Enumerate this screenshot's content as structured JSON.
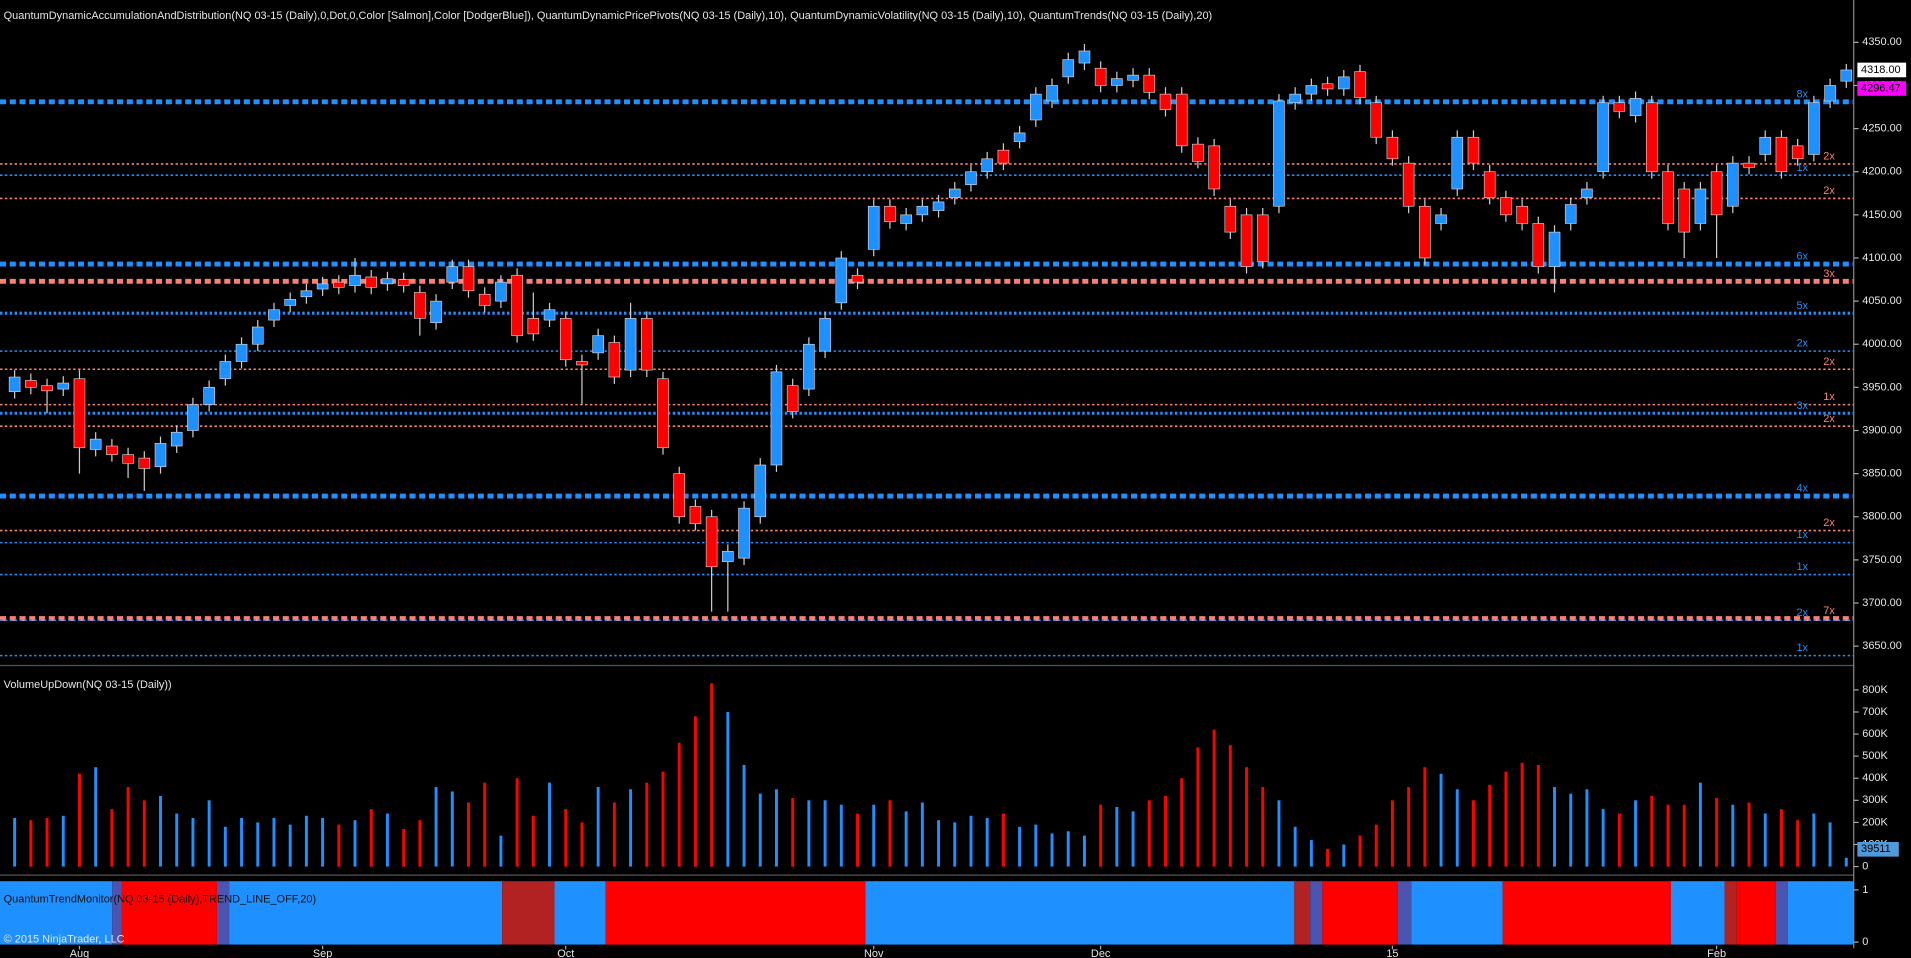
{
  "chart_data": [
    {
      "type": "candlestick",
      "title": "QuantumDynamicAccumulationAndDistribution(NQ 03-15 (Daily),0,Dot,0,Color [Salmon],Color [DodgerBlue]), QuantumDynamicPricePivots(NQ 03-15 (Daily),10), QuantumDynamicVolatility(NQ 03-15 (Daily),10), QuantumTrends(NQ 03-15 (Daily),20)",
      "up_color": "#1e90ff",
      "down_color": "#ff0000",
      "categories": [
        null,
        null,
        null,
        null,
        "Aug",
        null,
        null,
        null,
        null,
        null,
        null,
        null,
        null,
        null,
        null,
        null,
        null,
        null,
        null,
        "Sep",
        null,
        null,
        null,
        null,
        null,
        null,
        null,
        null,
        null,
        null,
        null,
        null,
        null,
        null,
        "Oct",
        null,
        null,
        null,
        null,
        null,
        null,
        null,
        null,
        null,
        null,
        null,
        null,
        null,
        null,
        null,
        null,
        null,
        null,
        "Nov",
        null,
        null,
        null,
        null,
        null,
        null,
        null,
        null,
        null,
        null,
        null,
        null,
        null,
        "Dec",
        null,
        null,
        null,
        null,
        null,
        null,
        null,
        null,
        null,
        null,
        null,
        null,
        null,
        null,
        null,
        null,
        null,
        "15",
        null,
        null,
        null,
        null,
        null,
        null,
        null,
        null,
        null,
        null,
        null,
        null,
        null,
        null,
        null,
        null,
        null,
        null,
        null,
        "Feb",
        null,
        null,
        null,
        null,
        null,
        null,
        null,
        null
      ],
      "open": [
        3945,
        3958,
        3952,
        3948,
        3960,
        3878,
        3882,
        3872,
        3868,
        3858,
        3882,
        3900,
        3930,
        3960,
        3980,
        4000,
        4028,
        4045,
        4055,
        4064,
        4072,
        4068,
        4078,
        4070,
        4075,
        4060,
        4025,
        4072,
        4090,
        4058,
        4050,
        4080,
        4030,
        4028,
        4030,
        3980,
        3990,
        4002,
        3970,
        4030,
        3960,
        3850,
        3812,
        3800,
        3748,
        3752,
        3800,
        3860,
        3952,
        3948,
        3992,
        4048,
        4080,
        4110,
        4160,
        4140,
        4150,
        4155,
        4170,
        4185,
        4200,
        4225,
        4235,
        4260,
        4282,
        4310,
        4326,
        4320,
        4300,
        4306,
        4312,
        4290,
        4290,
        4232,
        4230,
        4160,
        4150,
        4150,
        4160,
        4280,
        4290,
        4302,
        4296,
        4316,
        4280,
        4240,
        4210,
        4160,
        4140,
        4180,
        4240,
        4200,
        4170,
        4160,
        4140,
        4090,
        4140,
        4170,
        4200,
        4280,
        4265,
        4280,
        4200,
        4180,
        4140,
        4200,
        4160,
        4210,
        4220,
        4240,
        4230,
        4220,
        4282,
        4305
      ],
      "high": [
        3970,
        3966,
        3960,
        3963,
        3970,
        3898,
        3890,
        3880,
        3876,
        3893,
        3906,
        3938,
        3958,
        3988,
        4008,
        4028,
        4048,
        4060,
        4070,
        4078,
        4080,
        4100,
        4086,
        4084,
        4083,
        4068,
        4058,
        4098,
        4098,
        4066,
        4080,
        4088,
        4060,
        4048,
        4038,
        3988,
        4018,
        4010,
        4048,
        4038,
        3968,
        3858,
        3820,
        3808,
        3768,
        3818,
        3868,
        3976,
        3960,
        4008,
        4038,
        4108,
        4088,
        4168,
        4168,
        4158,
        4168,
        4173,
        4188,
        4208,
        4223,
        4233,
        4253,
        4298,
        4308,
        4338,
        4348,
        4328,
        4316,
        4320,
        4320,
        4298,
        4298,
        4240,
        4238,
        4168,
        4158,
        4158,
        4290,
        4298,
        4308,
        4310,
        4318,
        4324,
        4288,
        4248,
        4218,
        4168,
        4158,
        4248,
        4248,
        4208,
        4178,
        4168,
        4148,
        4138,
        4170,
        4188,
        4288,
        4288,
        4293,
        4288,
        4208,
        4188,
        4188,
        4208,
        4218,
        4218,
        4248,
        4248,
        4238,
        4288,
        4308,
        4325
      ],
      "low": [
        3937,
        3942,
        3920,
        3940,
        3850,
        3870,
        3864,
        3845,
        3830,
        3850,
        3874,
        3892,
        3922,
        3952,
        3972,
        3992,
        4020,
        4037,
        4047,
        4056,
        4058,
        4060,
        4058,
        4062,
        4060,
        4010,
        4017,
        4064,
        4054,
        4037,
        4042,
        4002,
        4004,
        4020,
        3974,
        3930,
        3982,
        3954,
        3962,
        3962,
        3872,
        3792,
        3784,
        3690,
        3690,
        3744,
        3792,
        3852,
        3914,
        3940,
        3984,
        4040,
        4064,
        4102,
        4134,
        4132,
        4142,
        4147,
        4162,
        4177,
        4192,
        4202,
        4227,
        4252,
        4274,
        4302,
        4318,
        4292,
        4292,
        4298,
        4284,
        4264,
        4222,
        4204,
        4172,
        4122,
        4082,
        4088,
        4152,
        4272,
        4282,
        4288,
        4288,
        4278,
        4232,
        4207,
        4152,
        4092,
        4132,
        4172,
        4202,
        4162,
        4142,
        4132,
        4082,
        4060,
        4132,
        4162,
        4192,
        4262,
        4257,
        4192,
        4132,
        4100,
        4132,
        4100,
        4152,
        4197,
        4212,
        4192,
        4207,
        4212,
        4274,
        4297
      ],
      "close": [
        3962,
        3950,
        3946,
        3955,
        3880,
        3890,
        3872,
        3862,
        3856,
        3885,
        3898,
        3930,
        3950,
        3980,
        4000,
        4020,
        4040,
        4052,
        4062,
        4070,
        4066,
        4080,
        4066,
        4076,
        4068,
        4030,
        4050,
        4090,
        4062,
        4045,
        4072,
        4010,
        4012,
        4040,
        3982,
        3976,
        4010,
        3962,
        4030,
        3970,
        3880,
        3800,
        3792,
        3742,
        3760,
        3810,
        3860,
        3968,
        3922,
        4000,
        4030,
        4100,
        4072,
        4160,
        4142,
        4150,
        4160,
        4165,
        4180,
        4200,
        4215,
        4210,
        4245,
        4290,
        4300,
        4330,
        4340,
        4300,
        4308,
        4312,
        4292,
        4272,
        4230,
        4212,
        4180,
        4130,
        4090,
        4096,
        4282,
        4290,
        4300,
        4296,
        4310,
        4286,
        4240,
        4215,
        4160,
        4100,
        4150,
        4240,
        4210,
        4170,
        4150,
        4140,
        4090,
        4130,
        4162,
        4180,
        4280,
        4270,
        4285,
        4200,
        4140,
        4130,
        4180,
        4150,
        4210,
        4205,
        4240,
        4200,
        4215,
        4280,
        4300,
        4318
      ],
      "ylim": [
        3629,
        4392
      ],
      "yticks": [
        {
          "value": 4350,
          "label": "4350.00"
        },
        {
          "value": 4300,
          "label": "4300.00"
        },
        {
          "value": 4250,
          "label": "4250.00"
        },
        {
          "value": 4200,
          "label": "4200.00"
        },
        {
          "value": 4150,
          "label": "4150.00"
        },
        {
          "value": 4100,
          "label": "4100.00"
        },
        {
          "value": 4050,
          "label": "4050.00"
        },
        {
          "value": 4000,
          "label": "4000.00"
        },
        {
          "value": 3950,
          "label": "3950.00"
        },
        {
          "value": 3900,
          "label": "3900.00"
        },
        {
          "value": 3850,
          "label": "3850.00"
        },
        {
          "value": 3800,
          "label": "3800.00"
        },
        {
          "value": 3750,
          "label": "3750.00"
        },
        {
          "value": 3700,
          "label": "3700.00"
        },
        {
          "value": 3650,
          "label": "3650.00"
        }
      ],
      "markers": [
        {
          "value": 4318,
          "label": "4318.00",
          "color": "#ffffff"
        },
        {
          "value": 4296.47,
          "label": "4296.47",
          "color": "#ff00ff"
        }
      ],
      "levels": [
        {
          "value": 4281,
          "color": "#1e90ff",
          "weight": "thick",
          "label": "8x"
        },
        {
          "value": 4209,
          "color": "#fa8072",
          "weight": "thin",
          "label": "2x"
        },
        {
          "value": 4196,
          "color": "#1e90ff",
          "weight": "thin",
          "label": "1x"
        },
        {
          "value": 4169,
          "color": "#fa8072",
          "weight": "thin",
          "label": "2x"
        },
        {
          "value": 4093,
          "color": "#1e90ff",
          "weight": "thick",
          "label": "6x"
        },
        {
          "value": 4073,
          "color": "#fa8072",
          "weight": "thick",
          "label": "3x"
        },
        {
          "value": 4036,
          "color": "#1e90ff",
          "weight": "medium",
          "label": "5x"
        },
        {
          "value": 3992,
          "color": "#1e90ff",
          "weight": "thin",
          "label": "2x"
        },
        {
          "value": 3971,
          "color": "#fa8072",
          "weight": "thin",
          "label": "2x"
        },
        {
          "value": 3930,
          "color": "#fa8072",
          "weight": "thin",
          "label": "1x"
        },
        {
          "value": 3920,
          "color": "#1e90ff",
          "weight": "medium",
          "label": "3x"
        },
        {
          "value": 3905,
          "color": "#fa8072",
          "weight": "thin",
          "label": "2x"
        },
        {
          "value": 3824,
          "color": "#1e90ff",
          "weight": "thick",
          "label": "4x"
        },
        {
          "value": 3784,
          "color": "#fa8072",
          "weight": "thin",
          "label": "2x"
        },
        {
          "value": 3770,
          "color": "#1e90ff",
          "weight": "thin",
          "label": "1x"
        },
        {
          "value": 3733,
          "color": "#1e90ff",
          "weight": "thin",
          "label": "1x"
        },
        {
          "value": 3682,
          "color": "#fa8072",
          "weight": "thick",
          "label": "7x"
        },
        {
          "value": 3680,
          "color": "#1e90ff",
          "weight": "thin",
          "label": "2x"
        },
        {
          "value": 3639,
          "color": "#1e90ff",
          "weight": "thin",
          "label": "1x"
        }
      ]
    },
    {
      "type": "bar",
      "title": "VolumeUpDown(NQ 03-15 (Daily))",
      "values": [
        220000,
        210000,
        220000,
        230000,
        420000,
        450000,
        260000,
        360000,
        300000,
        320000,
        240000,
        220000,
        300000,
        180000,
        220000,
        200000,
        220000,
        190000,
        230000,
        220000,
        190000,
        210000,
        260000,
        240000,
        170000,
        210000,
        360000,
        340000,
        290000,
        380000,
        140000,
        400000,
        230000,
        380000,
        260000,
        200000,
        360000,
        290000,
        350000,
        380000,
        430000,
        560000,
        680000,
        830000,
        700000,
        460000,
        330000,
        350000,
        310000,
        300000,
        300000,
        280000,
        240000,
        280000,
        300000,
        250000,
        290000,
        210000,
        200000,
        230000,
        220000,
        240000,
        180000,
        190000,
        150000,
        160000,
        140000,
        280000,
        270000,
        250000,
        300000,
        320000,
        400000,
        540000,
        620000,
        550000,
        450000,
        360000,
        300000,
        180000,
        120000,
        80000,
        100000,
        140000,
        190000,
        300000,
        360000,
        450000,
        420000,
        350000,
        300000,
        370000,
        430000,
        470000,
        460000,
        360000,
        330000,
        350000,
        260000,
        240000,
        300000,
        320000,
        280000,
        280000,
        380000,
        310000,
        280000,
        290000,
        240000,
        260000,
        210000,
        240000,
        200000,
        39511
      ],
      "ylim": [
        0,
        872000
      ],
      "yticks": [
        {
          "value": 800000,
          "label": "800K"
        },
        {
          "value": 700000,
          "label": "700K"
        },
        {
          "value": 600000,
          "label": "600K"
        },
        {
          "value": 500000,
          "label": "500K"
        },
        {
          "value": 400000,
          "label": "400K"
        },
        {
          "value": 300000,
          "label": "300K"
        },
        {
          "value": 200000,
          "label": "200K"
        },
        {
          "value": 100000,
          "label": "100K"
        },
        0
      ]
    },
    {
      "type": "band",
      "title": "QuantumTrendMonitor(NQ 03-15 (Daily),TREND_LINE_OFF,20)",
      "ylim": [
        -0.07,
        1.19
      ],
      "yticks": [
        1,
        0
      ]
    }
  ],
  "footer": "© 2015 NinjaTrader, LLC"
}
